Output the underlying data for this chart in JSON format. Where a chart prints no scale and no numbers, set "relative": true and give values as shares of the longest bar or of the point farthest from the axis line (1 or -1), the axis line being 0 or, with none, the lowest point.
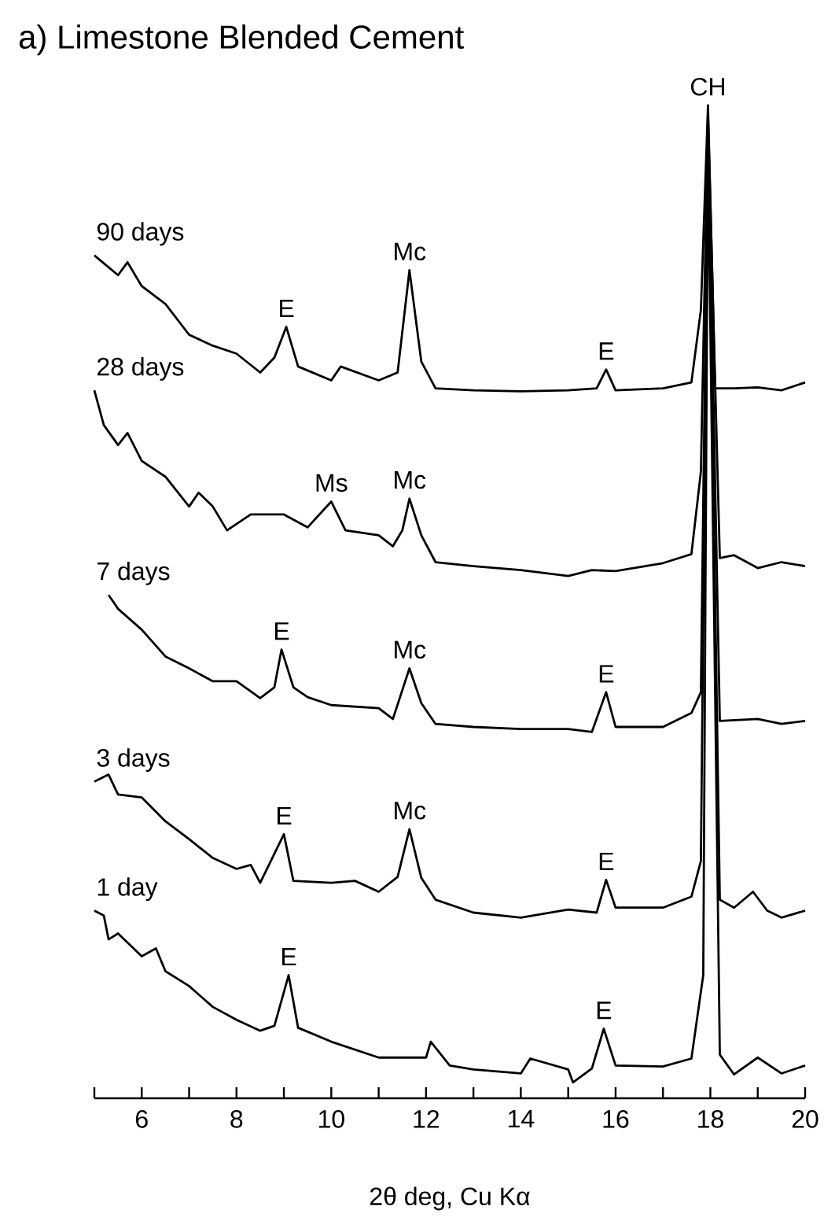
{
  "chart_data": {
    "type": "line",
    "title": "a) Limestone Blended Cement",
    "xlabel": "2θ deg, Cu Kα",
    "relative": true,
    "xlim": [
      5,
      20
    ],
    "xticks": [
      {
        "value": 5,
        "label": null
      },
      6,
      {
        "value": 7,
        "label": null
      },
      8,
      {
        "value": 9,
        "label": null
      },
      10,
      {
        "value": 11,
        "label": null
      },
      12,
      {
        "value": 13,
        "label": null
      },
      14,
      {
        "value": 15,
        "label": null
      },
      16,
      {
        "value": 17,
        "label": null
      },
      18,
      {
        "value": 19,
        "label": null
      },
      20
    ],
    "marker": "none",
    "line_style": "solid",
    "series": [
      {
        "name": "90 days",
        "color": "#000000",
        "x": [
          5,
          5.5,
          5.7,
          6,
          6.5,
          7,
          7.5,
          8,
          8.5,
          8.8,
          9.05,
          9.3,
          10,
          10.2,
          11,
          11.4,
          11.65,
          11.9,
          12.2,
          13,
          14,
          15,
          15.6,
          15.8,
          16,
          17,
          17.6,
          17.8,
          17.95,
          18.1,
          18.5,
          19,
          19.5,
          20
        ],
        "values": [
          0.849,
          0.829,
          0.842,
          0.818,
          0.8,
          0.769,
          0.758,
          0.75,
          0.731,
          0.746,
          0.777,
          0.737,
          0.723,
          0.737,
          0.723,
          0.731,
          0.834,
          0.742,
          0.715,
          0.713,
          0.712,
          0.713,
          0.715,
          0.734,
          0.713,
          0.715,
          0.721,
          0.794,
          1.0,
          0.715,
          0.715,
          0.716,
          0.713,
          0.721
        ]
      },
      {
        "name": "28 days",
        "color": "#000000",
        "x": [
          5,
          5.2,
          5.5,
          5.7,
          6,
          6.5,
          7,
          7.2,
          7.5,
          7.8,
          8.3,
          9,
          9.5,
          10,
          10.3,
          11,
          11.3,
          11.5,
          11.65,
          11.9,
          12.2,
          13,
          14,
          15,
          15.5,
          16,
          17,
          17.6,
          17.8,
          17.95,
          18.2,
          18.5,
          19,
          19.5,
          20
        ],
        "values": [
          0.713,
          0.678,
          0.658,
          0.67,
          0.642,
          0.626,
          0.596,
          0.61,
          0.596,
          0.572,
          0.588,
          0.588,
          0.575,
          0.601,
          0.572,
          0.567,
          0.556,
          0.572,
          0.604,
          0.567,
          0.54,
          0.536,
          0.532,
          0.526,
          0.532,
          0.531,
          0.539,
          0.548,
          0.631,
          0.99,
          0.544,
          0.547,
          0.534,
          0.54,
          0.536
        ]
      },
      {
        "name": "7 days",
        "color": "#000000",
        "x": [
          5.3,
          5.5,
          6,
          6.5,
          7,
          7.5,
          8,
          8.5,
          8.8,
          8.95,
          9.2,
          9.5,
          10,
          11,
          11.3,
          11.65,
          11.9,
          12.2,
          13,
          14,
          15,
          15.5,
          15.8,
          16,
          17,
          17.6,
          17.8,
          17.95,
          18.2,
          19,
          19.5,
          20
        ],
        "values": [
          0.507,
          0.493,
          0.472,
          0.445,
          0.433,
          0.42,
          0.42,
          0.403,
          0.414,
          0.452,
          0.414,
          0.404,
          0.396,
          0.393,
          0.382,
          0.433,
          0.398,
          0.377,
          0.374,
          0.372,
          0.372,
          0.369,
          0.409,
          0.374,
          0.374,
          0.388,
          0.409,
          0.98,
          0.38,
          0.382,
          0.377,
          0.38
        ]
      },
      {
        "name": "3 days",
        "color": "#000000",
        "x": [
          5,
          5.3,
          5.5,
          6,
          6.5,
          7,
          7.5,
          8,
          8.3,
          8.5,
          9,
          9.2,
          10,
          10.5,
          11,
          11.4,
          11.65,
          11.9,
          12.2,
          13,
          14,
          15,
          15.6,
          15.8,
          16,
          17,
          17.6,
          17.8,
          17.95,
          18.2,
          18.5,
          18.9,
          19.2,
          19.5,
          20
        ],
        "values": [
          0.319,
          0.326,
          0.306,
          0.303,
          0.279,
          0.261,
          0.242,
          0.231,
          0.235,
          0.217,
          0.266,
          0.219,
          0.217,
          0.219,
          0.208,
          0.223,
          0.271,
          0.222,
          0.2,
          0.187,
          0.182,
          0.19,
          0.187,
          0.22,
          0.192,
          0.192,
          0.203,
          0.239,
          0.97,
          0.2,
          0.192,
          0.208,
          0.189,
          0.182,
          0.189
        ]
      },
      {
        "name": "1 day",
        "color": "#000000",
        "x": [
          5,
          5.2,
          5.3,
          5.5,
          6,
          6.3,
          6.5,
          7,
          7.5,
          8,
          8.5,
          8.8,
          9.1,
          9.3,
          10,
          11,
          12,
          12.1,
          12.5,
          13,
          14,
          14.2,
          15,
          15.1,
          15.5,
          15.75,
          16,
          17,
          17.6,
          17.85,
          17.95,
          18.2,
          18.5,
          19,
          19.5,
          20
        ],
        "values": [
          0.189,
          0.184,
          0.16,
          0.166,
          0.143,
          0.151,
          0.128,
          0.113,
          0.092,
          0.079,
          0.068,
          0.073,
          0.124,
          0.071,
          0.057,
          0.041,
          0.041,
          0.057,
          0.033,
          0.029,
          0.025,
          0.04,
          0.029,
          0.016,
          0.03,
          0.07,
          0.033,
          0.032,
          0.04,
          0.124,
          0.96,
          0.044,
          0.024,
          0.041,
          0.025,
          0.033
        ]
      }
    ],
    "annotations": [
      {
        "text": "CH",
        "x": 17.95,
        "y": 1.0
      },
      {
        "text": "E",
        "x": 9.05,
        "y": 0.777
      },
      {
        "text": "Mc",
        "x": 11.65,
        "y": 0.834
      },
      {
        "text": "E",
        "x": 15.8,
        "y": 0.734
      },
      {
        "text": "Ms",
        "x": 10.0,
        "y": 0.601
      },
      {
        "text": "Mc",
        "x": 11.65,
        "y": 0.604
      },
      {
        "text": "E",
        "x": 8.95,
        "y": 0.452
      },
      {
        "text": "Mc",
        "x": 11.65,
        "y": 0.433
      },
      {
        "text": "E",
        "x": 15.8,
        "y": 0.409
      },
      {
        "text": "E",
        "x": 9.0,
        "y": 0.266
      },
      {
        "text": "Mc",
        "x": 11.65,
        "y": 0.271
      },
      {
        "text": "E",
        "x": 15.8,
        "y": 0.22
      },
      {
        "text": "E",
        "x": 9.1,
        "y": 0.124
      },
      {
        "text": "E",
        "x": 15.75,
        "y": 0.07
      }
    ]
  }
}
